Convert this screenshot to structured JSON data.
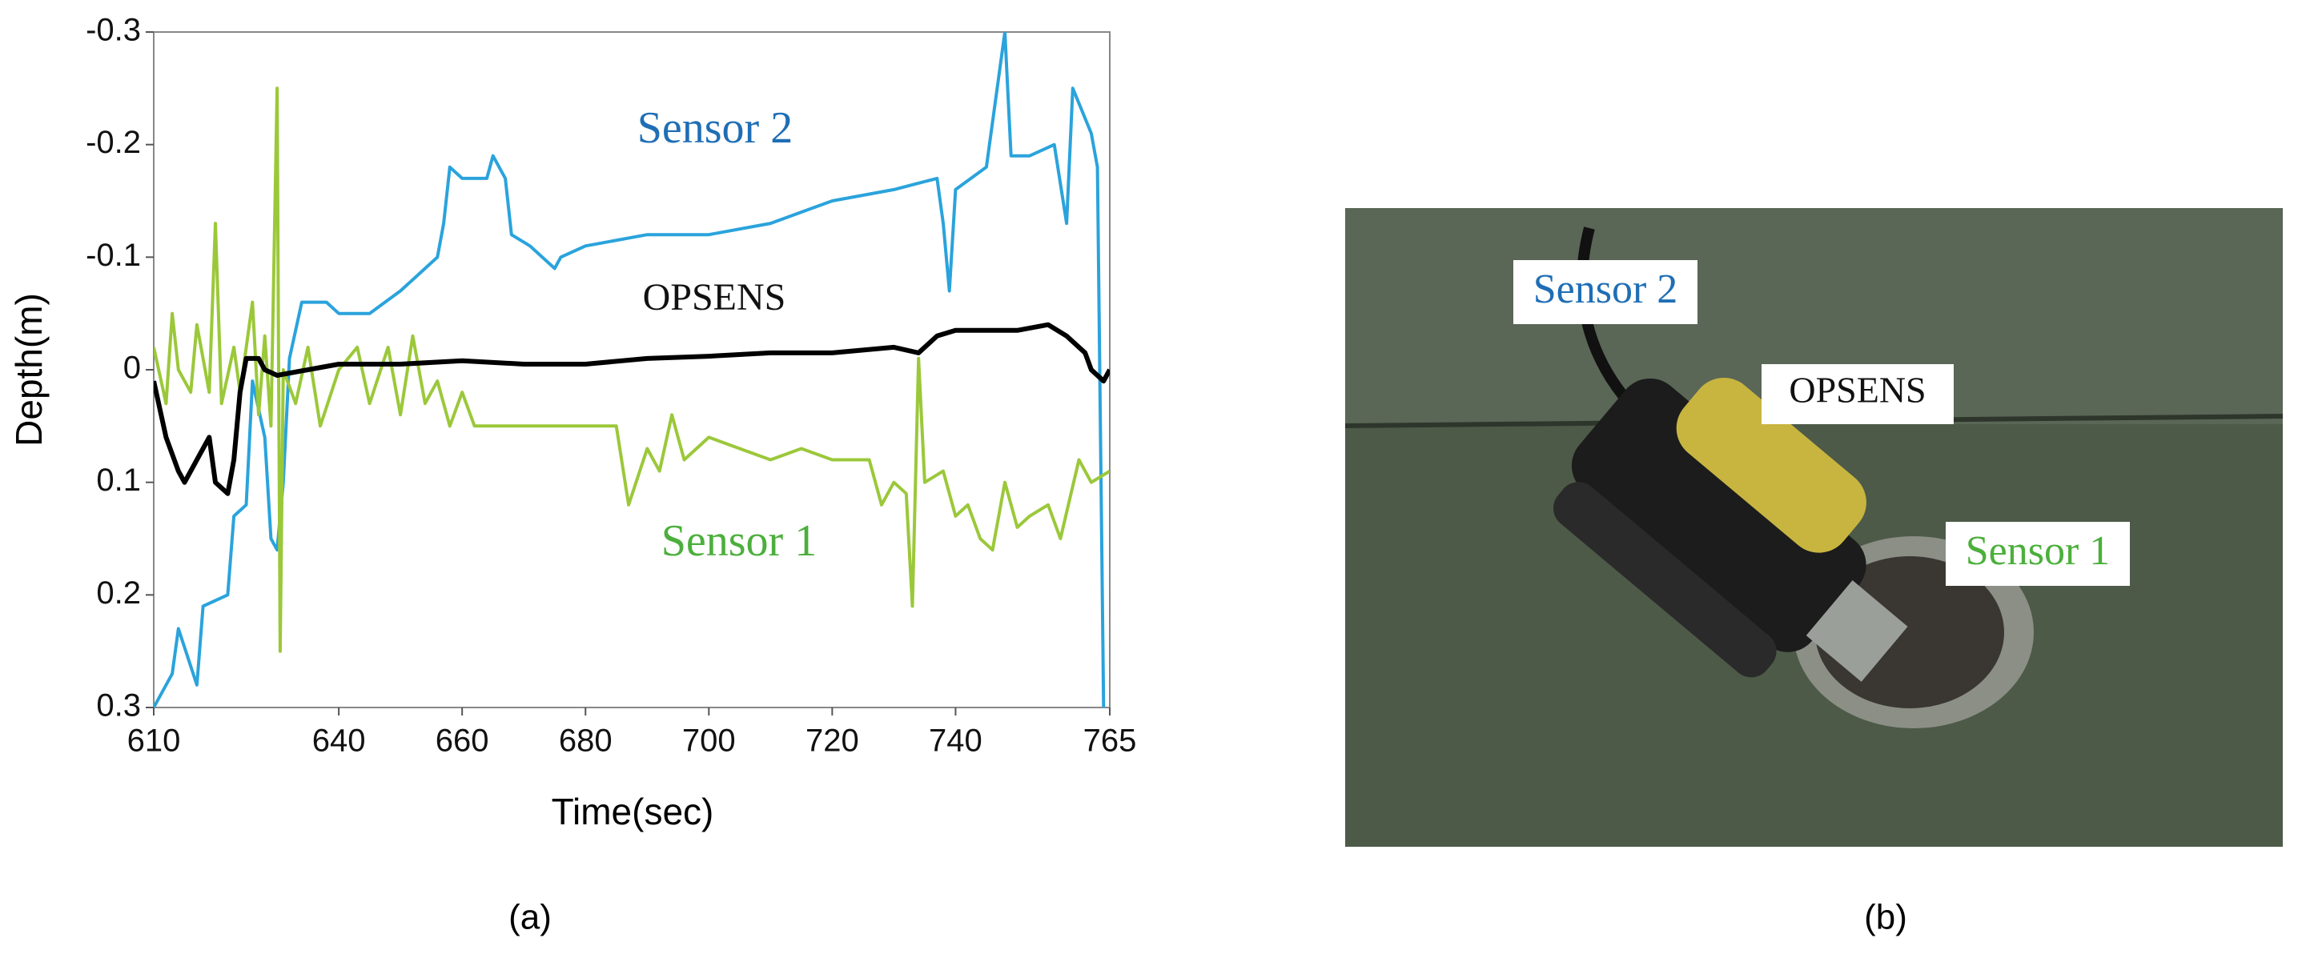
{
  "chart_data": {
    "type": "line",
    "xlabel": "Time(sec)",
    "ylabel": "Depth(m)",
    "xlim": [
      610,
      765
    ],
    "xticks": [
      610,
      640,
      660,
      680,
      700,
      720,
      740,
      765
    ],
    "ylim": [
      0.3,
      -0.3
    ],
    "yticks": [
      -0.3,
      -0.2,
      -0.1,
      0,
      0.1,
      0.2,
      0.3
    ],
    "annotations": [
      {
        "text": "Sensor 2",
        "color": "#1f6eb5"
      },
      {
        "text": "OPSENS",
        "color": "#111111"
      },
      {
        "text": "Sensor 1",
        "color": "#4caf3c"
      }
    ],
    "series": [
      {
        "name": "Sensor 2",
        "color": "#2aa3dc",
        "x": [
          610,
          613,
          614,
          617,
          618,
          622,
          623,
          625,
          626,
          628,
          629,
          630,
          631,
          632,
          634,
          638,
          640,
          645,
          650,
          654,
          656,
          657,
          658,
          660,
          664,
          665,
          667,
          668,
          671,
          675,
          676,
          680,
          690,
          700,
          710,
          720,
          730,
          737,
          738,
          739,
          740,
          745,
          748,
          749,
          752,
          756,
          758,
          759,
          762,
          763,
          764
        ],
        "values": [
          0.3,
          0.27,
          0.23,
          0.28,
          0.21,
          0.2,
          0.13,
          0.12,
          0.01,
          0.06,
          0.15,
          0.16,
          0.1,
          -0.01,
          -0.06,
          -0.06,
          -0.05,
          -0.05,
          -0.07,
          -0.09,
          -0.1,
          -0.13,
          -0.18,
          -0.17,
          -0.17,
          -0.19,
          -0.17,
          -0.12,
          -0.11,
          -0.09,
          -0.1,
          -0.11,
          -0.12,
          -0.12,
          -0.13,
          -0.15,
          -0.16,
          -0.17,
          -0.13,
          -0.07,
          -0.16,
          -0.18,
          -0.3,
          -0.19,
          -0.19,
          -0.2,
          -0.13,
          -0.25,
          -0.21,
          -0.18,
          0.3
        ]
      },
      {
        "name": "Sensor 1",
        "color": "#9bc83a",
        "x": [
          610,
          612,
          613,
          614,
          616,
          617,
          619,
          620,
          621,
          623,
          624,
          626,
          627,
          628,
          629,
          630,
          630.5,
          631,
          633,
          635,
          637,
          640,
          643,
          645,
          648,
          650,
          652,
          654,
          656,
          658,
          660,
          662,
          666,
          685,
          687,
          690,
          692,
          694,
          696,
          700,
          705,
          710,
          715,
          720,
          726,
          728,
          730,
          732,
          733,
          734,
          735,
          738,
          740,
          742,
          744,
          746,
          748,
          750,
          752,
          755,
          757,
          760,
          762,
          765
        ],
        "values": [
          -0.02,
          0.03,
          -0.05,
          0.0,
          0.02,
          -0.04,
          0.02,
          -0.13,
          0.03,
          -0.02,
          0.02,
          -0.06,
          0.04,
          -0.03,
          0.05,
          -0.25,
          0.25,
          0.0,
          0.03,
          -0.02,
          0.05,
          0.0,
          -0.02,
          0.03,
          -0.02,
          0.04,
          -0.03,
          0.03,
          0.01,
          0.05,
          0.02,
          0.05,
          0.05,
          0.05,
          0.12,
          0.07,
          0.09,
          0.04,
          0.08,
          0.06,
          0.07,
          0.08,
          0.07,
          0.08,
          0.08,
          0.12,
          0.1,
          0.11,
          0.21,
          -0.01,
          0.1,
          0.09,
          0.13,
          0.12,
          0.15,
          0.16,
          0.1,
          0.14,
          0.13,
          0.12,
          0.15,
          0.08,
          0.1,
          0.09
        ]
      },
      {
        "name": "OPSENS",
        "color": "#000000",
        "x": [
          610,
          612,
          614,
          615,
          617,
          619,
          620,
          622,
          623,
          624,
          625,
          627,
          628,
          630,
          635,
          640,
          650,
          660,
          670,
          680,
          690,
          700,
          710,
          720,
          730,
          734,
          737,
          740,
          750,
          755,
          758,
          761,
          762,
          764,
          765
        ],
        "values": [
          0.01,
          0.06,
          0.09,
          0.1,
          0.08,
          0.06,
          0.1,
          0.11,
          0.08,
          0.02,
          -0.01,
          -0.01,
          0.0,
          0.005,
          0.0,
          -0.005,
          -0.005,
          -0.008,
          -0.005,
          -0.005,
          -0.01,
          -0.012,
          -0.015,
          -0.015,
          -0.02,
          -0.015,
          -0.03,
          -0.035,
          -0.035,
          -0.04,
          -0.03,
          -0.015,
          0.0,
          0.01,
          0.0
        ]
      }
    ]
  },
  "figure": {
    "panel_labels": [
      "(a)",
      "(b)"
    ],
    "photo_labels": [
      "Sensor 2",
      "OPSENS",
      "Sensor 1"
    ]
  }
}
